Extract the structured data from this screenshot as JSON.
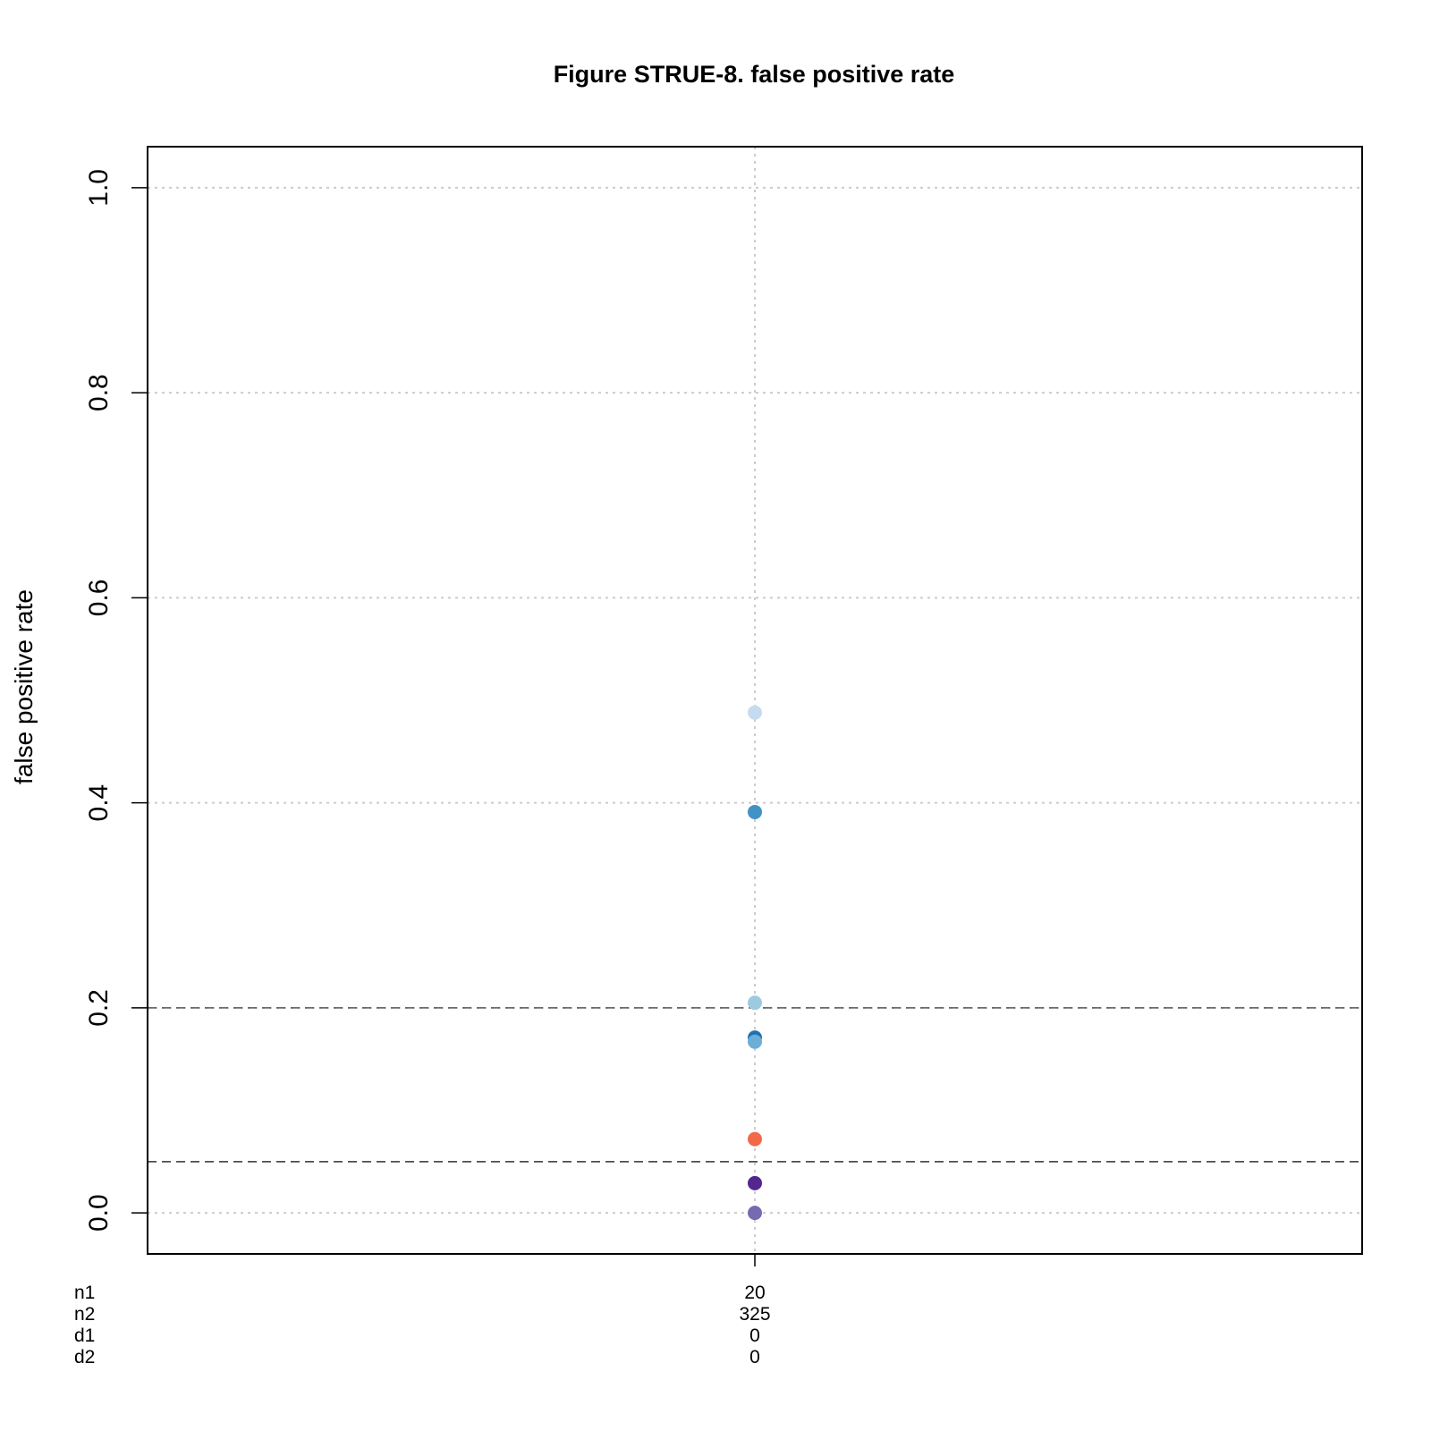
{
  "chart_data": {
    "type": "scatter",
    "title": "Figure STRUE-8. false positive rate",
    "ylabel": "false positive rate",
    "ylim": [
      -0.04,
      1.04
    ],
    "yticks": [
      0.0,
      0.2,
      0.4,
      0.6,
      0.8,
      1.0
    ],
    "ytick_labels": [
      "0.0",
      "0.2",
      "0.4",
      "0.6",
      "0.8",
      "1.0"
    ],
    "grid": true,
    "x_categories": [
      1
    ],
    "x_table": {
      "row_labels": [
        "n1",
        "n2",
        "d1",
        "d2"
      ],
      "columns": [
        {
          "values": [
            "20",
            "325",
            "0",
            "0"
          ]
        }
      ]
    },
    "reference_lines": [
      {
        "y": 0.2,
        "style": "dashed",
        "color": "#555555"
      },
      {
        "y": 0.05,
        "style": "dashed",
        "color": "#333333"
      }
    ],
    "points": [
      {
        "x": 1,
        "y": 0.488,
        "color": "#c6dbef"
      },
      {
        "x": 1,
        "y": 0.391,
        "color": "#4292c6"
      },
      {
        "x": 1,
        "y": 0.205,
        "color": "#9ecae1"
      },
      {
        "x": 1,
        "y": 0.171,
        "color": "#2171b5"
      },
      {
        "x": 1,
        "y": 0.167,
        "color": "#6baed6"
      },
      {
        "x": 1,
        "y": 0.072,
        "color": "#f16948"
      },
      {
        "x": 1,
        "y": 0.029,
        "color": "#54278f"
      },
      {
        "x": 1,
        "y": 0.0,
        "color": "#756bb1"
      }
    ]
  }
}
